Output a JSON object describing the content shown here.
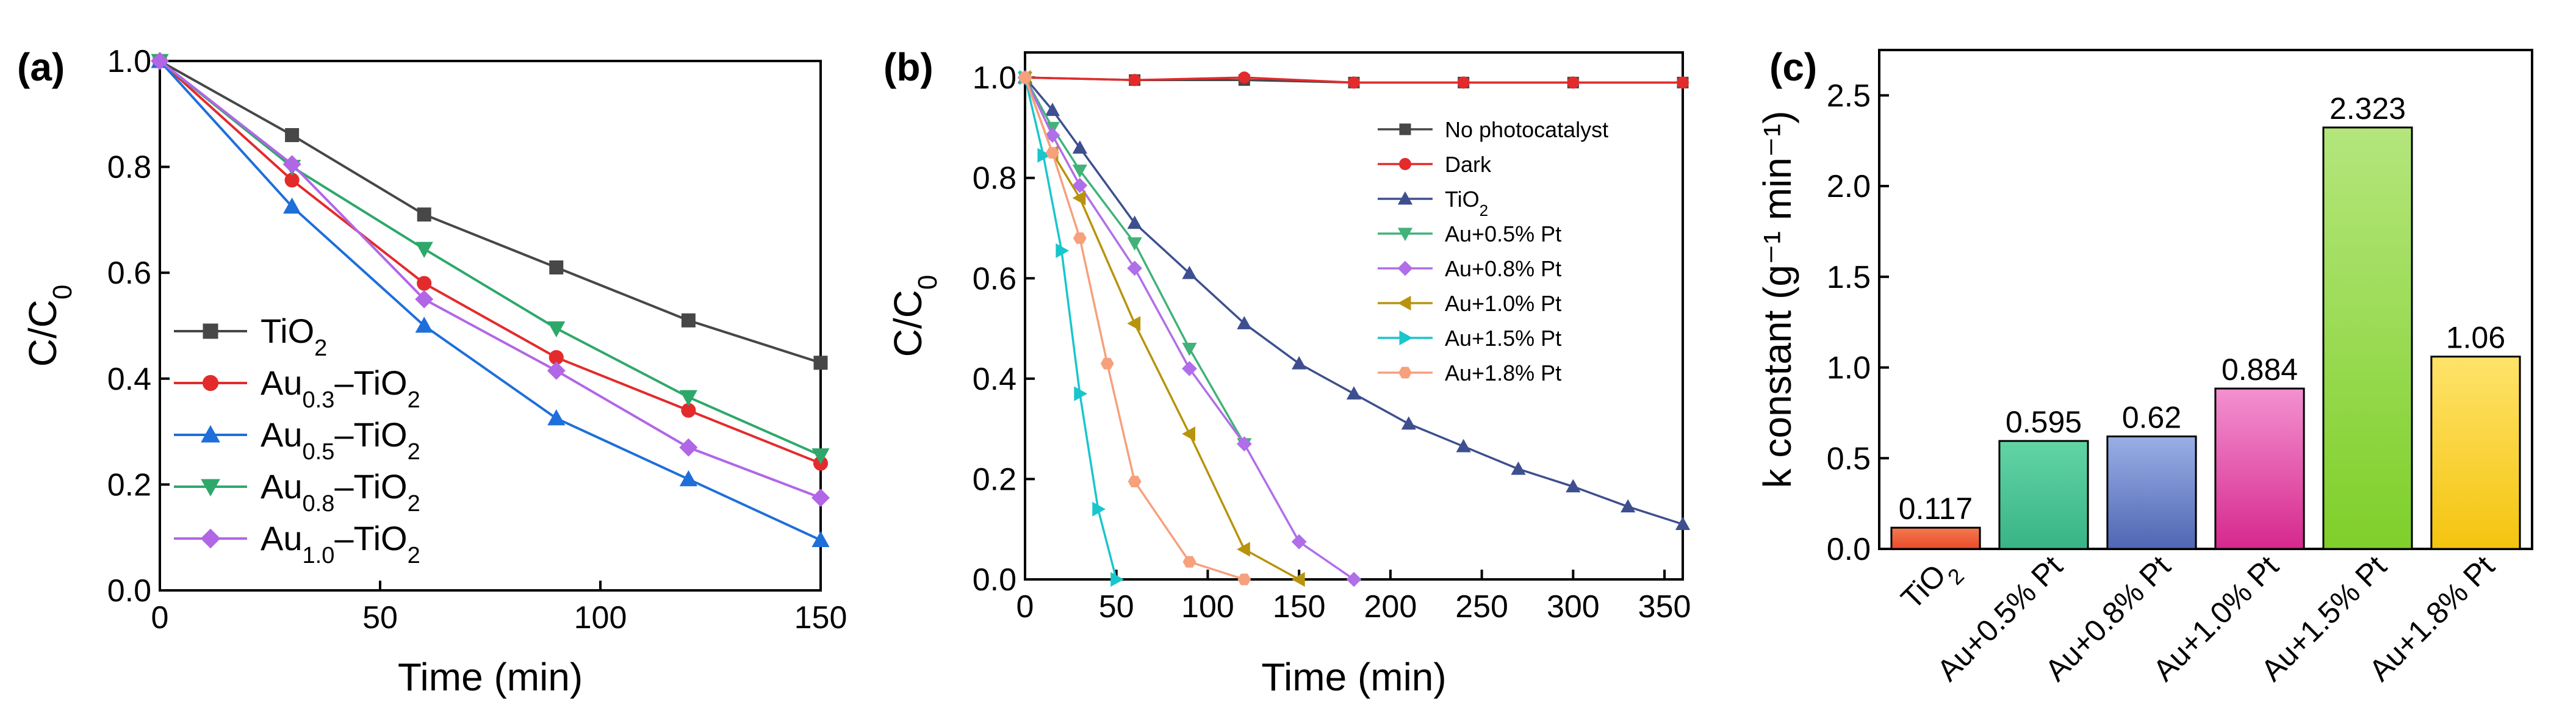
{
  "colors": {
    "black": "#474747",
    "red": "#e32b2b",
    "blue": "#1e6fd9",
    "green": "#2ea86a",
    "purple": "#b166e6",
    "navy": "#3d4f8f",
    "mint": "#42b27a",
    "violet": "#b06ee8",
    "olive": "#b8930e",
    "cyan": "#18c6cc",
    "salmon": "#f7a07c"
  },
  "chart_data": [
    {
      "type": "line",
      "panel_label": "(a)",
      "xlabel": "Time (min)",
      "ylabel": {
        "base": "C/C",
        "sub": "0"
      },
      "xlim": [
        0,
        150
      ],
      "ylim": [
        0,
        1.0
      ],
      "xticks": [
        0,
        50,
        100,
        150
      ],
      "yticks": [
        0.0,
        0.2,
        0.4,
        0.6,
        0.8,
        1.0
      ],
      "ytick_labels": [
        "0.0",
        "0.2",
        "0.4",
        "0.6",
        "0.8",
        "1.0"
      ],
      "x": [
        0,
        30,
        60,
        90,
        120,
        150
      ],
      "series": [
        {
          "name": "TiO2",
          "label": {
            "pre": "TiO",
            "sub": "2",
            "post": ""
          },
          "marker": "square",
          "color": "#474747",
          "values": [
            1.0,
            0.86,
            0.71,
            0.61,
            0.51,
            0.43
          ]
        },
        {
          "name": "Au0.3–TiO2",
          "label": {
            "pre": "Au",
            "sub": "0.3",
            "post": "–TiO",
            "sub2": "2"
          },
          "marker": "circle",
          "color": "#e32b2b",
          "values": [
            1.0,
            0.775,
            0.58,
            0.44,
            0.34,
            0.24
          ]
        },
        {
          "name": "Au0.5–TiO2",
          "label": {
            "pre": "Au",
            "sub": "0.5",
            "post": "–TiO",
            "sub2": "2"
          },
          "marker": "triangle-up",
          "color": "#1e6fd9",
          "values": [
            1.0,
            0.725,
            0.5,
            0.325,
            0.21,
            0.095
          ]
        },
        {
          "name": "Au0.8–TiO2",
          "label": {
            "pre": "Au",
            "sub": "0.8",
            "post": "–TiO",
            "sub2": "2"
          },
          "marker": "triangle-down",
          "color": "#2ea86a",
          "values": [
            1.0,
            0.8,
            0.645,
            0.495,
            0.365,
            0.255
          ]
        },
        {
          "name": "Au1.0–TiO2",
          "label": {
            "pre": "Au",
            "sub": "1.0",
            "post": "–TiO",
            "sub2": "2"
          },
          "marker": "diamond",
          "color": "#b166e6",
          "values": [
            1.0,
            0.805,
            0.55,
            0.415,
            0.27,
            0.175
          ]
        }
      ]
    },
    {
      "type": "line",
      "panel_label": "(b)",
      "xlabel": "Time (min)",
      "ylabel": {
        "base": "C/C",
        "sub": "0"
      },
      "xlim": [
        0,
        360
      ],
      "ylim": [
        0,
        1.05
      ],
      "xticks": [
        0,
        50,
        100,
        150,
        200,
        250,
        300,
        350
      ],
      "yticks": [
        0.0,
        0.2,
        0.4,
        0.6,
        0.8,
        1.0
      ],
      "ytick_labels": [
        "0.0",
        "0.2",
        "0.4",
        "0.6",
        "0.8",
        "1.0"
      ],
      "series": [
        {
          "name": "No photocatalyst",
          "marker": "square",
          "color": "#474747",
          "x": [
            0,
            60,
            120,
            180,
            240,
            300,
            360
          ],
          "values": [
            1.0,
            0.995,
            0.995,
            0.99,
            0.99,
            0.99,
            0.99
          ]
        },
        {
          "name": "Dark",
          "marker": "circle",
          "color": "#e32b2b",
          "x": [
            0,
            60,
            120,
            180,
            240,
            300,
            360
          ],
          "values": [
            1.0,
            0.995,
            1.0,
            0.99,
            0.99,
            0.99,
            0.99
          ]
        },
        {
          "name": "TiO2",
          "label": {
            "pre": "TiO",
            "sub": "2",
            "post": ""
          },
          "marker": "triangle-up",
          "color": "#3d4f8f",
          "x": [
            0,
            15,
            30,
            60,
            90,
            120,
            150,
            180,
            210,
            240,
            270,
            300,
            330,
            360
          ],
          "values": [
            1.0,
            0.935,
            0.86,
            0.71,
            0.61,
            0.51,
            0.43,
            0.37,
            0.31,
            0.265,
            0.22,
            0.185,
            0.145,
            0.11
          ]
        },
        {
          "name": "Au+0.5% Pt",
          "marker": "triangle-down",
          "color": "#42b27a",
          "x": [
            0,
            15,
            30,
            60,
            90,
            120
          ],
          "values": [
            1.0,
            0.9,
            0.815,
            0.67,
            0.46,
            0.27
          ]
        },
        {
          "name": "Au+0.8% Pt",
          "marker": "diamond",
          "color": "#b06ee8",
          "x": [
            0,
            15,
            30,
            60,
            90,
            120,
            150,
            180
          ],
          "values": [
            1.0,
            0.885,
            0.785,
            0.62,
            0.42,
            0.27,
            0.075,
            0.0
          ]
        },
        {
          "name": "Au+1.0% Pt",
          "marker": "triangle-left",
          "color": "#b8930e",
          "x": [
            0,
            15,
            30,
            60,
            90,
            120,
            150
          ],
          "values": [
            1.0,
            0.85,
            0.76,
            0.51,
            0.29,
            0.06,
            0.0
          ]
        },
        {
          "name": "Au+1.5% Pt",
          "marker": "triangle-right",
          "color": "#18c6cc",
          "x": [
            0,
            10,
            20,
            30,
            40,
            50
          ],
          "values": [
            1.0,
            0.845,
            0.655,
            0.37,
            0.14,
            0.0
          ]
        },
        {
          "name": "Au+1.8% Pt",
          "marker": "hexagon",
          "color": "#f7a07c",
          "x": [
            0,
            15,
            30,
            45,
            60,
            90,
            120
          ],
          "values": [
            1.0,
            0.85,
            0.68,
            0.43,
            0.195,
            0.035,
            0.0
          ]
        }
      ]
    },
    {
      "type": "bar",
      "panel_label": "(c)",
      "ylabel": "k constant (g⁻¹ min⁻¹)",
      "ylim": [
        0,
        2.75
      ],
      "yticks": [
        0.0,
        0.5,
        1.0,
        1.5,
        2.0,
        2.5
      ],
      "ytick_labels": [
        "0.0",
        "0.5",
        "1.0",
        "1.5",
        "2.0",
        "2.5"
      ],
      "categories": [
        "TiO2",
        "Au+0.5% Pt",
        "Au+0.8% Pt",
        "Au+1.0% Pt",
        "Au+1.5% Pt",
        "Au+1.8% Pt"
      ],
      "category_labels": [
        {
          "pre": "TiO",
          "sub": "2",
          "post": ""
        },
        {
          "pre": "Au+0.5% Pt"
        },
        {
          "pre": "Au+0.8% Pt"
        },
        {
          "pre": "Au+1.0% Pt"
        },
        {
          "pre": "Au+1.5% Pt"
        },
        {
          "pre": "Au+1.8% Pt"
        }
      ],
      "values": [
        0.117,
        0.595,
        0.62,
        0.884,
        2.323,
        1.06
      ],
      "value_labels": [
        "0.117",
        "0.595",
        "0.62",
        "0.884",
        "2.323",
        "1.06"
      ],
      "bar_colors": [
        [
          "#f47a50",
          "#e94b2a"
        ],
        [
          "#62d4a4",
          "#38b486"
        ],
        [
          "#9aafe6",
          "#4f66b3"
        ],
        [
          "#f391d0",
          "#d6288e"
        ],
        [
          "#b4e67c",
          "#7fcf2a"
        ],
        [
          "#ffe36a",
          "#f4c40e"
        ]
      ]
    }
  ]
}
